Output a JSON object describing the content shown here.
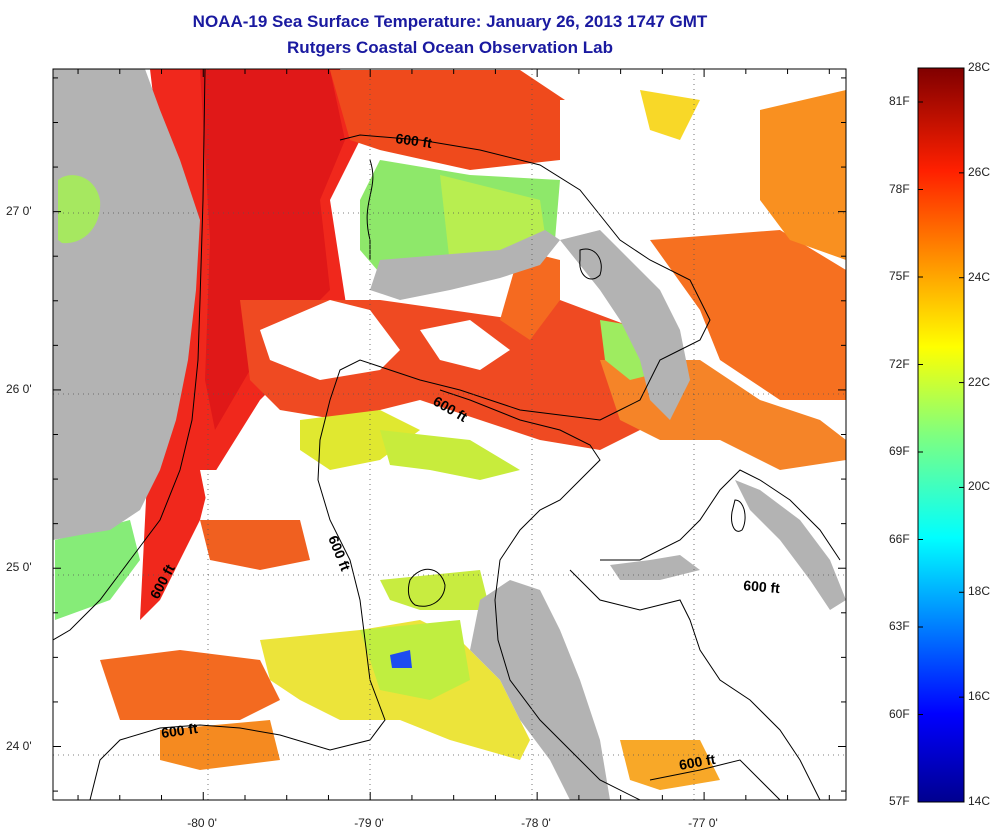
{
  "title": "NOAA-19 Sea Surface Temperature:  January 26, 2013 1747 GMT",
  "subtitle": "Rutgers Coastal Ocean Observation Lab",
  "map": {
    "lon_range": [
      -80.9,
      -76.15
    ],
    "lat_range": [
      23.7,
      27.8
    ],
    "x_ticks": [
      {
        "lon": -80,
        "label": "-80 0'"
      },
      {
        "lon": -79,
        "label": "-79 0'"
      },
      {
        "lon": -78,
        "label": "-78 0'"
      },
      {
        "lon": -77,
        "label": "-77 0'"
      }
    ],
    "y_ticks": [
      {
        "lat": 27,
        "label": "27 0'"
      },
      {
        "lat": 26,
        "label": "26 0'"
      },
      {
        "lat": 25,
        "label": "25 0'"
      },
      {
        "lat": 24,
        "label": "24 0'"
      }
    ],
    "contour_labels": [
      "600 ft",
      "600 ft",
      "600 ft",
      "600 ft",
      "600 ft",
      "600 ft"
    ],
    "colors": {
      "land": "#b3b3b3",
      "cloud": "#ffffff",
      "contour": "#000000"
    }
  },
  "colorbar": {
    "celsius_labels": [
      "28C",
      "26C",
      "24C",
      "22C",
      "20C",
      "18C",
      "16C",
      "14C"
    ],
    "fahrenheit_labels": [
      "81F",
      "78F",
      "75F",
      "72F",
      "69F",
      "66F",
      "63F",
      "60F",
      "57F"
    ],
    "range_c": [
      14,
      28
    ]
  }
}
